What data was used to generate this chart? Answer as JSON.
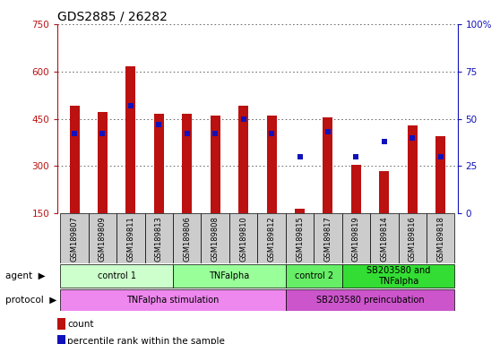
{
  "title": "GDS2885 / 26282",
  "samples": [
    "GSM189807",
    "GSM189809",
    "GSM189811",
    "GSM189813",
    "GSM189806",
    "GSM189808",
    "GSM189810",
    "GSM189812",
    "GSM189815",
    "GSM189817",
    "GSM189819",
    "GSM189814",
    "GSM189816",
    "GSM189818"
  ],
  "counts": [
    490,
    470,
    615,
    465,
    465,
    460,
    490,
    460,
    165,
    455,
    305,
    285,
    430,
    395
  ],
  "percentile_ranks": [
    42,
    42,
    57,
    47,
    42,
    42,
    50,
    42,
    30,
    43,
    30,
    38,
    40,
    30
  ],
  "ylim_left": [
    150,
    750
  ],
  "ylim_right": [
    0,
    100
  ],
  "yticks_left": [
    150,
    300,
    450,
    600,
    750
  ],
  "yticks_right": [
    0,
    25,
    50,
    75,
    100
  ],
  "bar_color": "#bb1111",
  "dot_color": "#1111bb",
  "bar_width": 0.35,
  "agent_groups": [
    {
      "label": "control 1",
      "start": 0,
      "end": 3,
      "color": "#ccffcc"
    },
    {
      "label": "TNFalpha",
      "start": 4,
      "end": 7,
      "color": "#99ff99"
    },
    {
      "label": "control 2",
      "start": 8,
      "end": 9,
      "color": "#66ee66"
    },
    {
      "label": "SB203580 and\nTNFalpha",
      "start": 10,
      "end": 13,
      "color": "#33dd33"
    }
  ],
  "protocol_groups": [
    {
      "label": "TNFalpha stimulation",
      "start": 0,
      "end": 7,
      "color": "#ee88ee"
    },
    {
      "label": "SB203580 preincubation",
      "start": 8,
      "end": 13,
      "color": "#cc55cc"
    }
  ],
  "legend_count_color": "#bb1111",
  "legend_percentile_color": "#1111bb",
  "grid_color": "#555555",
  "bg_color": "#ffffff",
  "sample_bg_color": "#cccccc",
  "title_fontsize": 10,
  "tick_fontsize": 7.5,
  "sample_fontsize": 6,
  "annot_fontsize": 7.5
}
